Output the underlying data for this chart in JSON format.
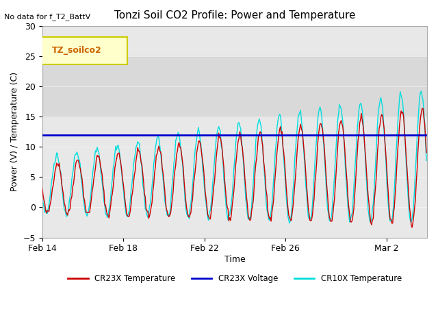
{
  "title": "Tonzi Soil CO2 Profile: Power and Temperature",
  "no_data_text": "No data for f_T2_BattV",
  "legend_box_text": "TZ_soilco2",
  "xlabel": "Time",
  "ylabel": "Power (V) / Temperature (C)",
  "ylim": [
    -5,
    30
  ],
  "xlim_days": 19,
  "yticks": [
    -5,
    0,
    5,
    10,
    15,
    20,
    25,
    30
  ],
  "xtick_labels": [
    "Feb 14",
    "Feb 18",
    "Feb 22",
    "Feb 26",
    "Mar 2"
  ],
  "xtick_positions": [
    0,
    4,
    8,
    12,
    17
  ],
  "voltage_line_y": 12,
  "voltage_color": "#0000cc",
  "cr23x_color": "#cc0000",
  "cr10x_color": "#00dddd",
  "bg_color": "#ffffff",
  "plot_bg_color": "#e8e8e8",
  "shaded_band_y1": 15,
  "shaded_band_y2": 25,
  "shaded_band_color": "#d0d0d0",
  "legend_bg": "#ffffcc",
  "legend_border": "#cccc00"
}
